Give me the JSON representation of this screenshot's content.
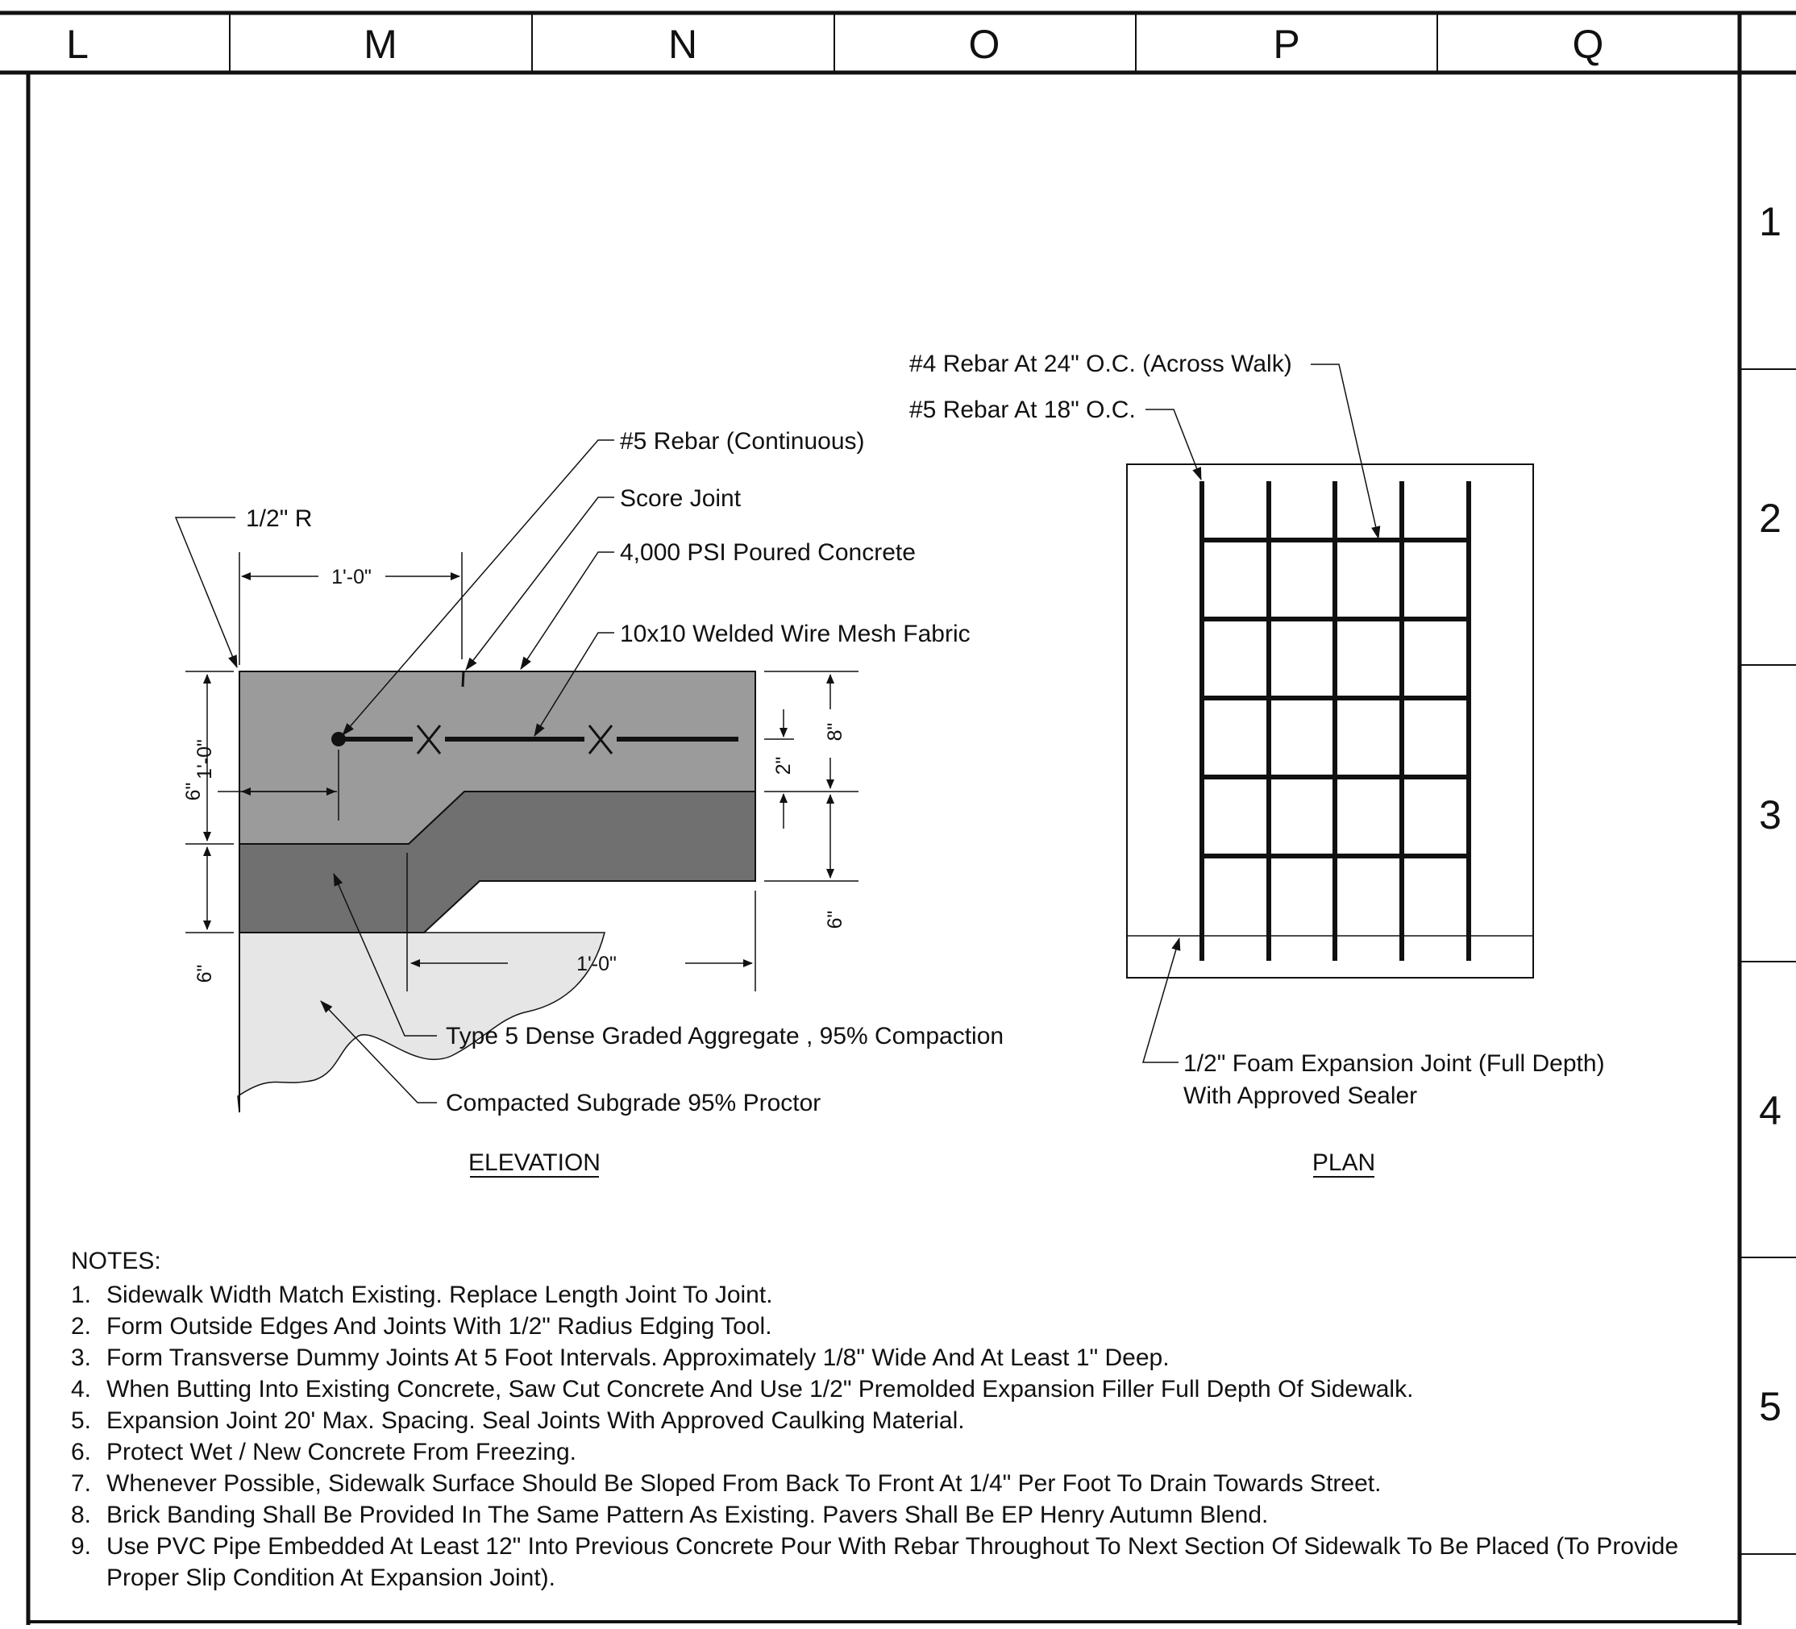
{
  "column_labels": [
    "L",
    "M",
    "N",
    "O",
    "P",
    "Q"
  ],
  "row_labels": [
    "1",
    "2",
    "3",
    "4",
    "5"
  ],
  "elevation": {
    "title": "ELEVATION",
    "callouts": {
      "radius": "1/2\" R",
      "rebar_continuous": "#5 Rebar (Continuous)",
      "score_joint": "Score Joint",
      "concrete": "4,000 PSI Poured Concrete",
      "wire_mesh": "10x10 Welded Wire Mesh Fabric",
      "aggregate": "Type 5 Dense Graded Aggregate , 95% Compaction",
      "subgrade": "Compacted Subgrade 95% Proctor"
    },
    "dimensions": {
      "top_width": "1'-0\"",
      "bottom_width": "1'-0\"",
      "left_height": "1'-0\"",
      "left_lower": "6\"",
      "rebar_offset": "6\"",
      "right_top": "8\"",
      "right_cover": "2\"",
      "right_lower": "6\""
    }
  },
  "plan": {
    "title": "PLAN",
    "callouts": {
      "rebar_4": "#4 Rebar At 24\" O.C. (Across Walk)",
      "rebar_5": "#5 Rebar At 18\" O.C.",
      "joint_line1": "1/2\" Foam Expansion Joint (Full Depth)",
      "joint_line2": "With Approved Sealer"
    }
  },
  "notes": {
    "heading": "NOTES:",
    "items": [
      {
        "num": "1.",
        "text": "Sidewalk Width Match Existing.  Replace Length Joint To Joint."
      },
      {
        "num": "2.",
        "text": "Form Outside Edges And Joints With 1/2\" Radius Edging Tool."
      },
      {
        "num": "3.",
        "text": "Form Transverse Dummy Joints At 5 Foot Intervals.  Approximately 1/8\" Wide  And At Least 1\" Deep."
      },
      {
        "num": "4.",
        "text": "When Butting Into Existing Concrete, Saw Cut Concrete And Use 1/2\" Premolded Expansion Filler Full Depth Of Sidewalk."
      },
      {
        "num": "5.",
        "text": "Expansion Joint 20' Max. Spacing.  Seal Joints With Approved Caulking Material."
      },
      {
        "num": "6.",
        "text": "Protect Wet / New Concrete From Freezing."
      },
      {
        "num": "7.",
        "text": "Whenever Possible, Sidewalk Surface Should Be Sloped From Back To Front At 1/4\" Per Foot To Drain Towards Street."
      },
      {
        "num": "8.",
        "text": "Brick Banding Shall Be Provided In The Same Pattern As Existing.  Pavers Shall Be EP Henry Autumn Blend."
      },
      {
        "num": "9.",
        "text": "Use PVC Pipe Embedded At Least 12\" Into Previous Concrete Pour With Rebar Throughout To Next Section Of Sidewalk To Be Placed (To Provide Proper Slip Condition At Expansion Joint)."
      }
    ]
  },
  "colors": {
    "concrete": "#9b9b9b",
    "aggregate": "#707070",
    "subgrade": "#e6e6e6",
    "line": "#111111"
  }
}
